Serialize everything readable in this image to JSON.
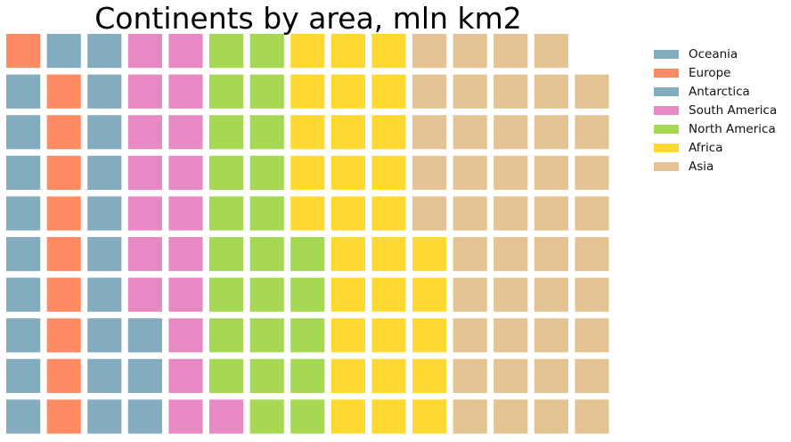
{
  "chart_data": {
    "type": "waffle",
    "title": "Continents by area, mln km2",
    "rows": 10,
    "fill_order": "bottom-to-top, left-to-right",
    "grid": false,
    "legend_placement": "top-right",
    "categories": [
      "Oceania",
      "Europe",
      "Antarctica",
      "South America",
      "North America",
      "Africa",
      "Asia"
    ],
    "values": [
      9,
      10,
      14,
      18,
      24,
      30,
      44
    ],
    "colors": [
      "#83ACBE",
      "#FF8B65",
      "#83ACBE",
      "#E78AC4",
      "#A6D854",
      "#FFD931",
      "#E5C494"
    ],
    "legend": [
      {
        "label": "Oceania",
        "color": "#83ACBE"
      },
      {
        "label": "Europe",
        "color": "#FF8B65"
      },
      {
        "label": "Antarctica",
        "color": "#83ACBE"
      },
      {
        "label": "South America",
        "color": "#E78AC4"
      },
      {
        "label": "North America",
        "color": "#A6D854"
      },
      {
        "label": "Africa",
        "color": "#FFD931"
      },
      {
        "label": "Asia",
        "color": "#E5C494"
      }
    ]
  }
}
